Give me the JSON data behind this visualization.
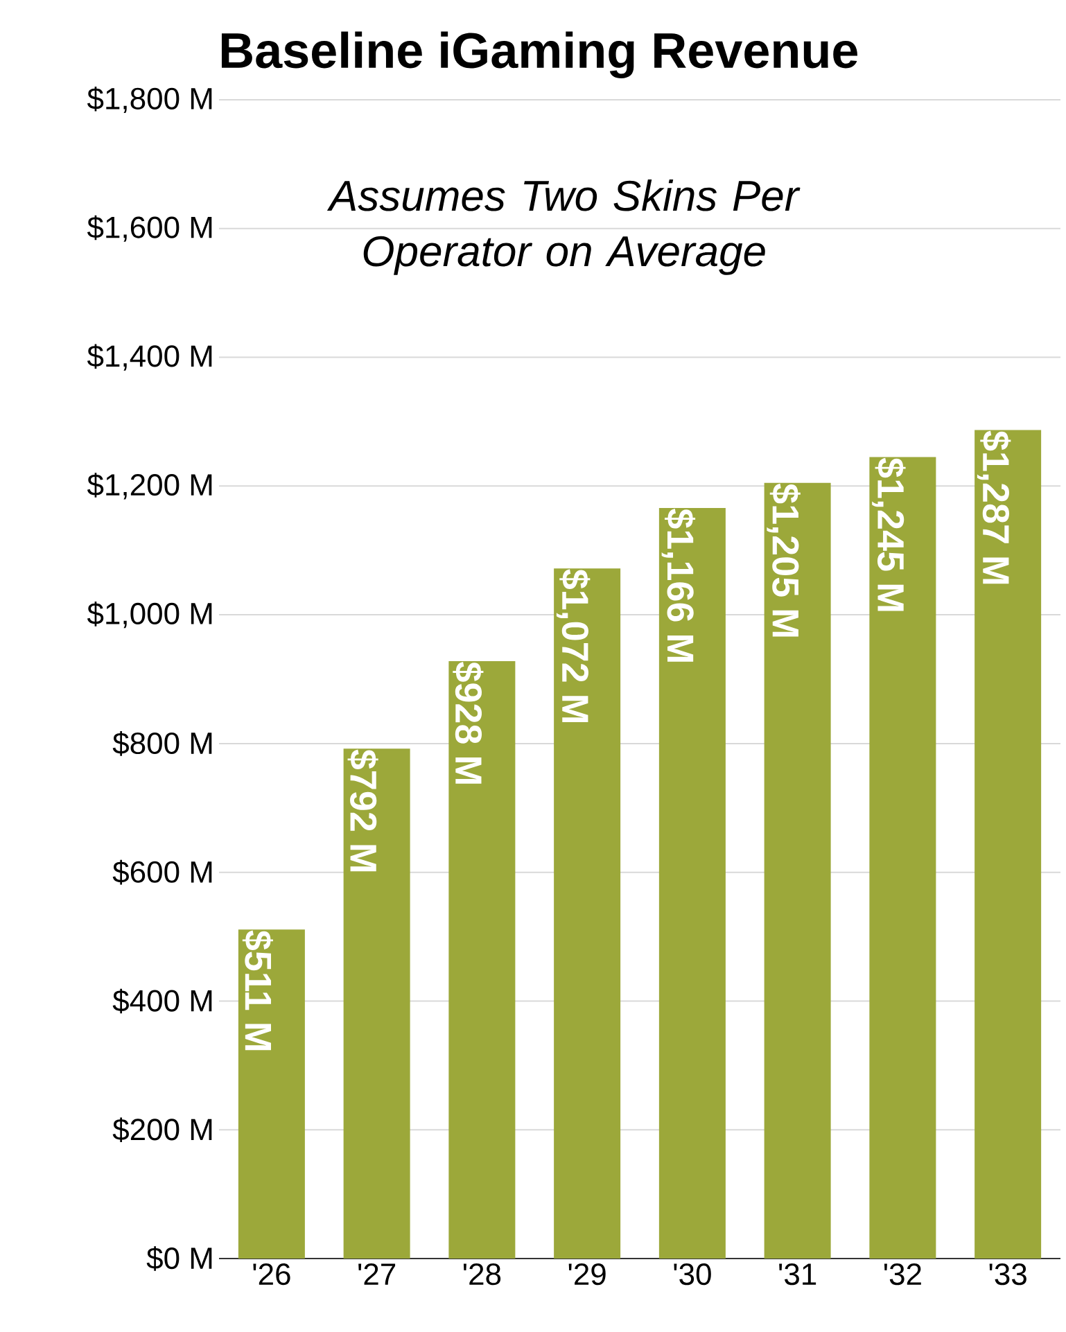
{
  "chart_data": {
    "type": "bar",
    "title": "Baseline iGaming Revenue",
    "annotations": [
      "*Assumes Two Skins Per Operator on Average*"
    ],
    "categories": [
      "'26",
      "'27",
      "'28",
      "'29",
      "'30",
      "'31",
      "'32",
      "'33"
    ],
    "values": [
      511,
      792,
      928,
      1072,
      1166,
      1205,
      1245,
      1287
    ],
    "value_labels": [
      "$511 M",
      "$792 M",
      "$928 M",
      "$1,072 M",
      "$1,166 M",
      "$1,205 M",
      "$1,245 M",
      "$1,287 M"
    ],
    "color": "#9ca83a",
    "ylim": [
      0,
      1800
    ],
    "yticks": [
      {
        "value": 0,
        "label": "$0 M"
      },
      {
        "value": 200,
        "label": "$200 M"
      },
      {
        "value": 400,
        "label": "$400 M"
      },
      {
        "value": 600,
        "label": "$600 M"
      },
      {
        "value": 800,
        "label": "$800 M"
      },
      {
        "value": 1000,
        "label": "$1,000 M"
      },
      {
        "value": 1200,
        "label": "$1,200 M"
      },
      {
        "value": 1400,
        "label": "$1,400 M"
      },
      {
        "value": 1600,
        "label": "$1,600 M"
      },
      {
        "value": 1800,
        "label": "$1,800 M"
      }
    ],
    "grid": "y"
  }
}
